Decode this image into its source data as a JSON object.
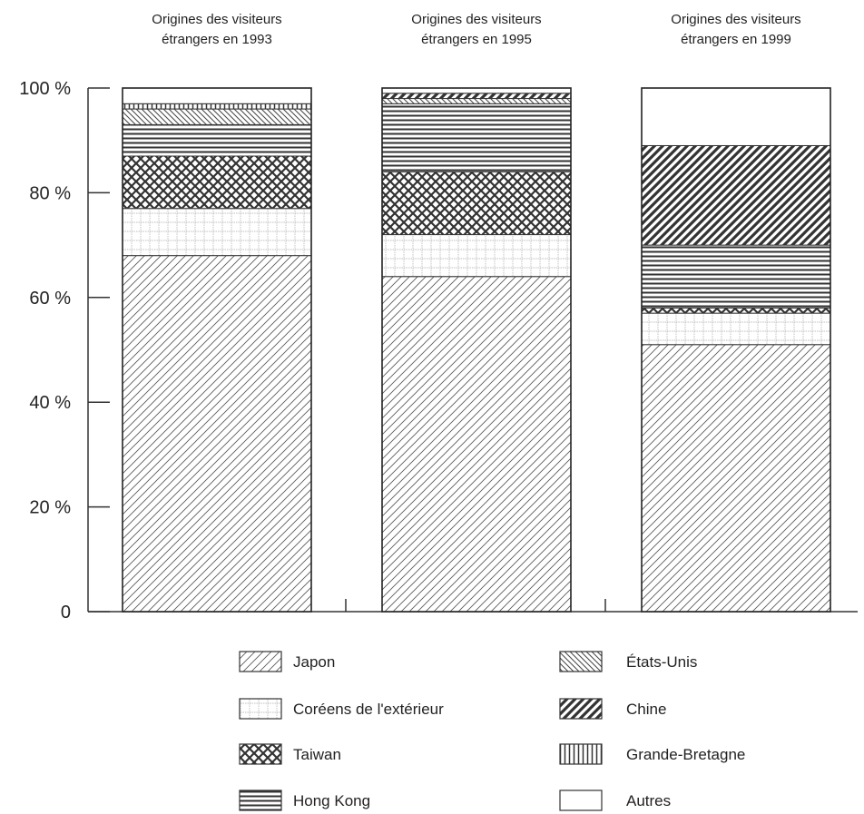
{
  "chart_data": {
    "type": "bar",
    "stacked": true,
    "percent": true,
    "categories": [
      "Origines des visiteurs étrangers en 1993",
      "Origines des visiteurs étrangers en 1995",
      "Origines des visiteurs étrangers en 1999"
    ],
    "category_lines": [
      [
        "Origines des visiteurs",
        "étrangers en 1993"
      ],
      [
        "Origines des visiteurs",
        "étrangers en 1995"
      ],
      [
        "Origines des visiteurs",
        "étrangers en 1999"
      ]
    ],
    "y_ticks": [
      {
        "value": 0,
        "label": "0"
      },
      {
        "value": 20,
        "label": "20 %"
      },
      {
        "value": 40,
        "label": "40 %"
      },
      {
        "value": 60,
        "label": "60 %"
      },
      {
        "value": 80,
        "label": "80 %"
      },
      {
        "value": 100,
        "label": "100 %"
      }
    ],
    "ylim": [
      0,
      100
    ],
    "grid": false,
    "legend_position": "bottom",
    "series": [
      {
        "name": "Japon",
        "pattern": "hatch-light",
        "values": [
          68,
          64,
          51
        ]
      },
      {
        "name": "Coréens de l'extérieur",
        "pattern": "grid",
        "values": [
          9,
          8,
          6
        ]
      },
      {
        "name": "Taiwan",
        "pattern": "crosshatch",
        "values": [
          10,
          12,
          1
        ]
      },
      {
        "name": "Hong Kong",
        "pattern": "horizontal",
        "values": [
          6,
          13,
          12
        ]
      },
      {
        "name": "États-Unis",
        "pattern": "hatch-back",
        "values": [
          3,
          1,
          0
        ]
      },
      {
        "name": "Chine",
        "pattern": "hatch-dark",
        "values": [
          0,
          1,
          19
        ]
      },
      {
        "name": "Grande-Bretagne",
        "pattern": "vertical",
        "values": [
          1,
          0,
          0
        ]
      },
      {
        "name": "Autres",
        "pattern": "none",
        "values": [
          3,
          1,
          11
        ]
      }
    ],
    "legend_order": [
      "Japon",
      "Coréens de l'extérieur",
      "Taiwan",
      "Hong Kong",
      "États-Unis",
      "Chine",
      "Grande-Bretagne",
      "Autres"
    ]
  }
}
